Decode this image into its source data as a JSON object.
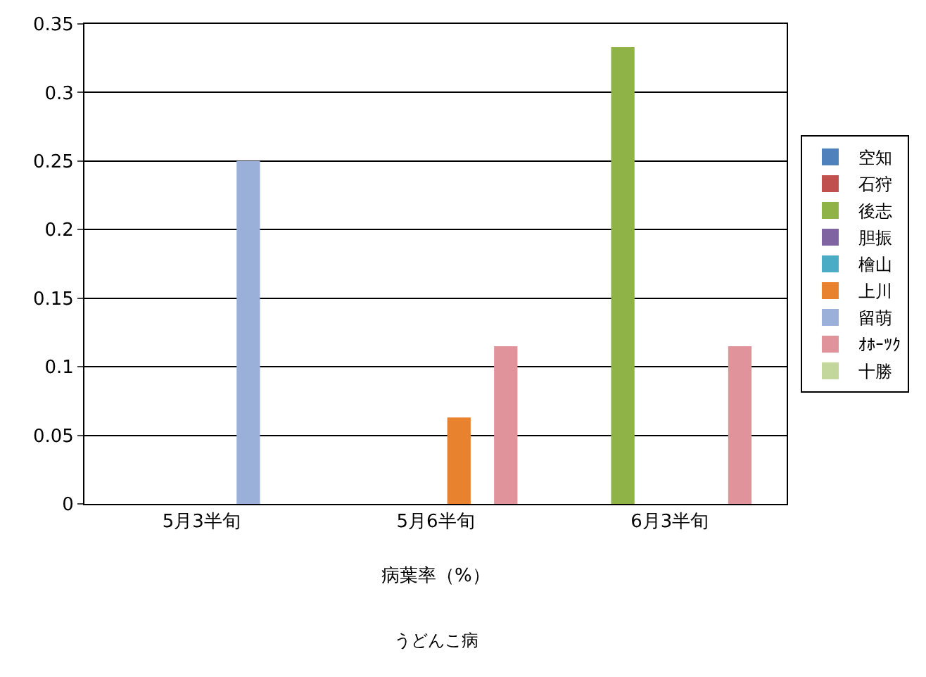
{
  "chart_data": {
    "type": "bar",
    "categories": [
      "5月3半旬",
      "5月6半旬",
      "6月3半旬"
    ],
    "xlabel": "病葉率（%）",
    "annotations": [
      "うどんこ病"
    ],
    "series": [
      {
        "name": "空知",
        "color": "#4f81bd",
        "values": [
          null,
          null,
          null
        ]
      },
      {
        "name": "石狩",
        "color": "#c0504d",
        "values": [
          null,
          null,
          null
        ]
      },
      {
        "name": "後志",
        "color": "#8fb347",
        "values": [
          null,
          null,
          0.333
        ]
      },
      {
        "name": "胆振",
        "color": "#8064a2",
        "values": [
          null,
          null,
          null
        ]
      },
      {
        "name": "檜山",
        "color": "#4bacc6",
        "values": [
          null,
          null,
          null
        ]
      },
      {
        "name": "上川",
        "color": "#e8822e",
        "values": [
          null,
          0.063,
          null
        ]
      },
      {
        "name": "留萌",
        "color": "#9bb0d8",
        "values": [
          0.25,
          null,
          null
        ]
      },
      {
        "name": "ｵﾎｰﾂｸ",
        "color": "#e0939b",
        "values": [
          null,
          0.115,
          0.115
        ]
      },
      {
        "name": "十勝",
        "color": "#c3d69b",
        "values": [
          null,
          null,
          null
        ]
      }
    ],
    "ylim": [
      0,
      0.35
    ],
    "yticks": [
      0,
      0.05,
      0.1,
      0.15,
      0.2,
      0.25,
      0.3,
      0.35
    ],
    "grid": "y",
    "legend": "right"
  }
}
